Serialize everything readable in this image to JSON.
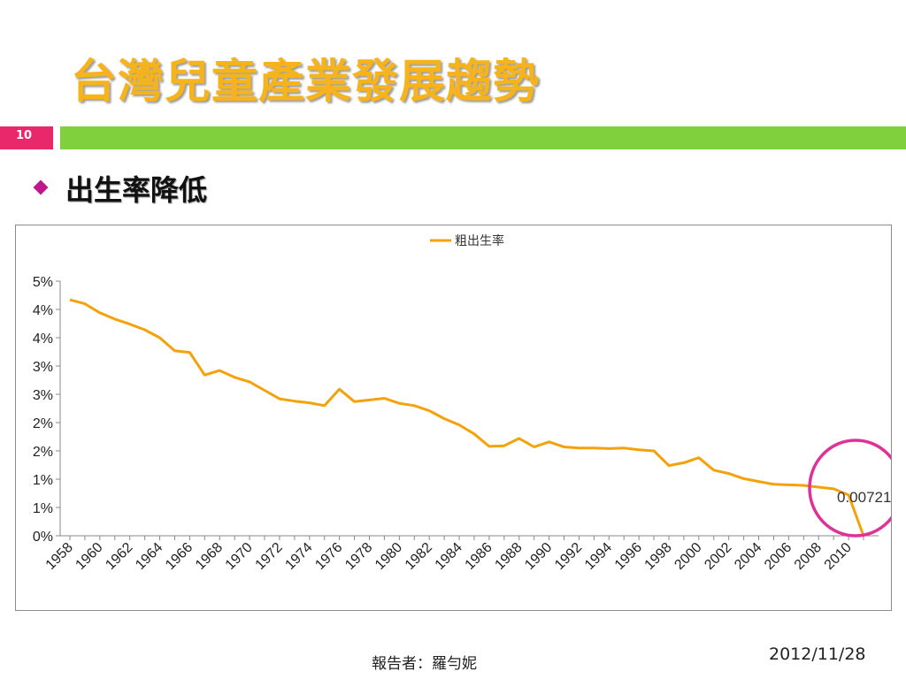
{
  "slide": {
    "title": "台灣兒童產業發展趨勢",
    "number": "10",
    "bullet": "出生率降低",
    "footer_presenter": "報告者：羅勻妮",
    "footer_date": "2012/11/28"
  },
  "colors": {
    "title": "#F6B31B",
    "accent_green": "#7FD03C",
    "accent_pink": "#E8286B",
    "series_line": "#F5A20A",
    "highlight_circle": "#E0309A"
  },
  "chart_data": {
    "type": "line",
    "series": [
      {
        "name": "粗出生率",
        "x": [
          1958,
          1959,
          1960,
          1961,
          1962,
          1963,
          1964,
          1965,
          1966,
          1967,
          1968,
          1969,
          1970,
          1971,
          1972,
          1973,
          1974,
          1975,
          1976,
          1977,
          1978,
          1979,
          1980,
          1981,
          1982,
          1983,
          1984,
          1985,
          1986,
          1987,
          1988,
          1989,
          1990,
          1991,
          1992,
          1993,
          1994,
          1995,
          1996,
          1997,
          1998,
          1999,
          2000,
          2001,
          2002,
          2003,
          2004,
          2005,
          2006,
          2007,
          2008,
          2009,
          2010,
          2011
        ],
        "values": [
          0.0417,
          0.041,
          0.0394,
          0.0383,
          0.0374,
          0.0364,
          0.035,
          0.0327,
          0.0324,
          0.0284,
          0.0292,
          0.028,
          0.0272,
          0.0257,
          0.0242,
          0.0238,
          0.0235,
          0.023,
          0.0259,
          0.0237,
          0.024,
          0.0243,
          0.0234,
          0.023,
          0.0221,
          0.0207,
          0.0196,
          0.018,
          0.0158,
          0.0159,
          0.0172,
          0.0157,
          0.0166,
          0.0157,
          0.0155,
          0.0155,
          0.0154,
          0.0155,
          0.0152,
          0.015,
          0.0124,
          0.0129,
          0.0138,
          0.0116,
          0.011,
          0.0101,
          0.0096,
          0.0091,
          0.009,
          0.0089,
          0.0086,
          0.0083,
          0.00721,
          0.0
        ]
      }
    ],
    "y_tick_labels": [
      "0%",
      "1%",
      "1%",
      "2%",
      "2%",
      "3%",
      "3%",
      "4%",
      "4%",
      "5%"
    ],
    "x_tick_labels": [
      "1958",
      "1960",
      "1962",
      "1964",
      "1966",
      "1968",
      "1970",
      "1972",
      "1974",
      "1976",
      "1978",
      "1980",
      "1982",
      "1984",
      "1986",
      "1988",
      "1990",
      "1992",
      "1994",
      "1996",
      "1998",
      "2000",
      "2002",
      "2004",
      "2006",
      "2008",
      "2010"
    ],
    "ylim": [
      0,
      0.045
    ],
    "annotation": "0.00721",
    "legend_position": "top-center",
    "grid": false
  }
}
